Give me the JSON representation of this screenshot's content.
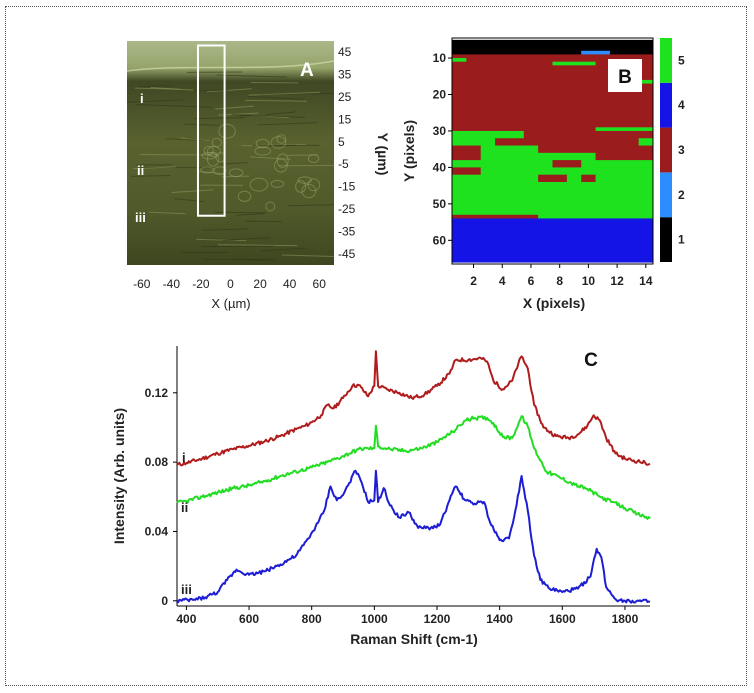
{
  "panel_a": {
    "letter": "A",
    "x_label": "X (µm)",
    "y_label": "Y (µm)",
    "x_ticks": [
      -60,
      -40,
      -20,
      0,
      20,
      40,
      60
    ],
    "y_ticks": [
      45,
      35,
      25,
      15,
      5,
      -5,
      -15,
      -25,
      -35,
      -45
    ],
    "region_labels": [
      "i",
      "ii",
      "iii"
    ],
    "xlim": [
      -70,
      70
    ],
    "ylim": [
      -50,
      50
    ],
    "box": {
      "x0": -22,
      "x1": -4,
      "y0": -28,
      "y1": 48
    }
  },
  "chart_data": [
    {
      "type": "heatmap",
      "panel": "B",
      "letter": "B",
      "xlabel": "X (pixels)",
      "ylabel": "Y (pixels)",
      "x_ticks": [
        2,
        4,
        6,
        8,
        10,
        12,
        14
      ],
      "y_ticks": [
        10,
        20,
        30,
        40,
        50,
        60
      ],
      "xlim": [
        0.5,
        14.5
      ],
      "ylim": [
        4.5,
        66.5
      ],
      "colorbar": {
        "labels": [
          "1",
          "2",
          "3",
          "4",
          "5"
        ],
        "classes": [
          1,
          2,
          3,
          4,
          5
        ],
        "colors": [
          "#000000",
          "#2d8cff",
          "#9b1c1c",
          "#1414e6",
          "#1de21d"
        ]
      },
      "rows": [
        {
          "y0": 5,
          "y1": 8,
          "runs": [
            [
              1,
              14,
              1
            ]
          ]
        },
        {
          "y0": 8,
          "y1": 9,
          "runs": [
            [
              1,
              9,
              1
            ],
            [
              10,
              11,
              2
            ],
            [
              12,
              14,
              1
            ]
          ]
        },
        {
          "y0": 9,
          "y1": 10,
          "runs": [
            [
              1,
              7,
              3
            ],
            [
              8,
              14,
              3
            ]
          ]
        },
        {
          "y0": 10,
          "y1": 11,
          "runs": [
            [
              1,
              1,
              5
            ],
            [
              2,
              14,
              3
            ]
          ]
        },
        {
          "y0": 11,
          "y1": 12,
          "runs": [
            [
              1,
              7,
              3
            ],
            [
              8,
              10,
              5
            ],
            [
              11,
              14,
              3
            ]
          ]
        },
        {
          "y0": 12,
          "y1": 16,
          "runs": [
            [
              1,
              14,
              3
            ]
          ]
        },
        {
          "y0": 16,
          "y1": 17,
          "runs": [
            [
              1,
              13,
              3
            ],
            [
              14,
              14,
              5
            ]
          ]
        },
        {
          "y0": 17,
          "y1": 29,
          "runs": [
            [
              1,
              14,
              3
            ]
          ]
        },
        {
          "y0": 29,
          "y1": 30,
          "runs": [
            [
              1,
              10,
              3
            ],
            [
              11,
              14,
              5
            ]
          ]
        },
        {
          "y0": 30,
          "y1": 32,
          "runs": [
            [
              1,
              5,
              5
            ],
            [
              6,
              14,
              3
            ]
          ]
        },
        {
          "y0": 32,
          "y1": 34,
          "runs": [
            [
              1,
              3,
              5
            ],
            [
              4,
              13,
              3
            ],
            [
              14,
              14,
              5
            ]
          ]
        },
        {
          "y0": 34,
          "y1": 36,
          "runs": [
            [
              1,
              2,
              3
            ],
            [
              3,
              6,
              5
            ],
            [
              7,
              14,
              3
            ]
          ]
        },
        {
          "y0": 36,
          "y1": 38,
          "runs": [
            [
              1,
              2,
              3
            ],
            [
              3,
              10,
              5
            ],
            [
              11,
              14,
              3
            ]
          ]
        },
        {
          "y0": 38,
          "y1": 40,
          "runs": [
            [
              1,
              7,
              5
            ],
            [
              8,
              9,
              3
            ],
            [
              10,
              14,
              5
            ]
          ]
        },
        {
          "y0": 40,
          "y1": 42,
          "runs": [
            [
              1,
              2,
              3
            ],
            [
              3,
              14,
              5
            ]
          ]
        },
        {
          "y0": 42,
          "y1": 44,
          "runs": [
            [
              1,
              6,
              5
            ],
            [
              7,
              8,
              3
            ],
            [
              9,
              9,
              5
            ],
            [
              10,
              10,
              3
            ],
            [
              11,
              14,
              5
            ]
          ]
        },
        {
          "y0": 44,
          "y1": 53,
          "runs": [
            [
              1,
              14,
              5
            ]
          ]
        },
        {
          "y0": 53,
          "y1": 54,
          "runs": [
            [
              1,
              6,
              3
            ],
            [
              7,
              14,
              5
            ]
          ]
        },
        {
          "y0": 54,
          "y1": 66,
          "runs": [
            [
              1,
              14,
              4
            ]
          ]
        }
      ]
    },
    {
      "type": "line",
      "panel": "C",
      "letter": "C",
      "xlabel": "Raman Shift (cm-1)",
      "ylabel": "Intensity (Arb. units)",
      "xlim": [
        370,
        1880
      ],
      "ylim": [
        -0.003,
        0.147
      ],
      "x_ticks": [
        400,
        600,
        800,
        1000,
        1200,
        1400,
        1600,
        1800
      ],
      "y_ticks": [
        0,
        0.04,
        0.08,
        0.12
      ],
      "series": [
        {
          "name": "i",
          "color": "#b01c1c",
          "points": [
            [
              370,
              0.0785
            ],
            [
              400,
              0.0795
            ],
            [
              450,
              0.082
            ],
            [
              500,
              0.085
            ],
            [
              550,
              0.0875
            ],
            [
              600,
              0.0895
            ],
            [
              650,
              0.092
            ],
            [
              700,
              0.095
            ],
            [
              750,
              0.099
            ],
            [
              780,
              0.101
            ],
            [
              800,
              0.103
            ],
            [
              830,
              0.107
            ],
            [
              850,
              0.113
            ],
            [
              870,
              0.111
            ],
            [
              900,
              0.117
            ],
            [
              930,
              0.124
            ],
            [
              950,
              0.1245
            ],
            [
              980,
              0.118
            ],
            [
              1000,
              0.124
            ],
            [
              1005,
              0.144
            ],
            [
              1012,
              0.124
            ],
            [
              1040,
              0.122
            ],
            [
              1080,
              0.12
            ],
            [
              1120,
              0.117
            ],
            [
              1160,
              0.119
            ],
            [
              1200,
              0.124
            ],
            [
              1240,
              0.131
            ],
            [
              1260,
              0.139
            ],
            [
              1300,
              0.139
            ],
            [
              1340,
              0.14
            ],
            [
              1360,
              0.138
            ],
            [
              1380,
              0.127
            ],
            [
              1410,
              0.122
            ],
            [
              1440,
              0.127
            ],
            [
              1460,
              0.137
            ],
            [
              1470,
              0.141
            ],
            [
              1490,
              0.134
            ],
            [
              1510,
              0.113
            ],
            [
              1540,
              0.1
            ],
            [
              1580,
              0.095
            ],
            [
              1620,
              0.094
            ],
            [
              1650,
              0.096
            ],
            [
              1680,
              0.101
            ],
            [
              1700,
              0.107
            ],
            [
              1720,
              0.104
            ],
            [
              1740,
              0.094
            ],
            [
              1770,
              0.085
            ],
            [
              1800,
              0.082
            ],
            [
              1840,
              0.0805
            ],
            [
              1880,
              0.079
            ]
          ]
        },
        {
          "name": "ii",
          "color": "#22dd22",
          "points": [
            [
              370,
              0.0565
            ],
            [
              400,
              0.0575
            ],
            [
              450,
              0.06
            ],
            [
              500,
              0.0625
            ],
            [
              550,
              0.065
            ],
            [
              600,
              0.0665
            ],
            [
              650,
              0.069
            ],
            [
              700,
              0.072
            ],
            [
              750,
              0.0745
            ],
            [
              800,
              0.077
            ],
            [
              850,
              0.08
            ],
            [
              900,
              0.0835
            ],
            [
              950,
              0.0875
            ],
            [
              980,
              0.088
            ],
            [
              1000,
              0.088
            ],
            [
              1005,
              0.101
            ],
            [
              1012,
              0.089
            ],
            [
              1050,
              0.0875
            ],
            [
              1100,
              0.0865
            ],
            [
              1150,
              0.088
            ],
            [
              1200,
              0.0915
            ],
            [
              1250,
              0.0975
            ],
            [
              1290,
              0.104
            ],
            [
              1320,
              0.1055
            ],
            [
              1360,
              0.1055
            ],
            [
              1380,
              0.1025
            ],
            [
              1410,
              0.0945
            ],
            [
              1440,
              0.094
            ],
            [
              1460,
              0.102
            ],
            [
              1470,
              0.1065
            ],
            [
              1490,
              0.1005
            ],
            [
              1510,
              0.088
            ],
            [
              1550,
              0.0745
            ],
            [
              1600,
              0.0705
            ],
            [
              1640,
              0.067
            ],
            [
              1680,
              0.0645
            ],
            [
              1720,
              0.06
            ],
            [
              1760,
              0.057
            ],
            [
              1800,
              0.0535
            ],
            [
              1840,
              0.05
            ],
            [
              1880,
              0.0475
            ]
          ]
        },
        {
          "name": "iii",
          "color": "#1d1dd4",
          "points": [
            [
              370,
              0
            ],
            [
              420,
              0.0005
            ],
            [
              460,
              0.002
            ],
            [
              500,
              0.005
            ],
            [
              530,
              0.012
            ],
            [
              560,
              0.018
            ],
            [
              600,
              0.015
            ],
            [
              650,
              0.017
            ],
            [
              700,
              0.021
            ],
            [
              750,
              0.026
            ],
            [
              790,
              0.036
            ],
            [
              820,
              0.045
            ],
            [
              840,
              0.052
            ],
            [
              860,
              0.066
            ],
            [
              880,
              0.058
            ],
            [
              900,
              0.061
            ],
            [
              920,
              0.068
            ],
            [
              940,
              0.075
            ],
            [
              960,
              0.068
            ],
            [
              980,
              0.057
            ],
            [
              1000,
              0.058
            ],
            [
              1005,
              0.075
            ],
            [
              1012,
              0.057
            ],
            [
              1030,
              0.065
            ],
            [
              1050,
              0.055
            ],
            [
              1080,
              0.048
            ],
            [
              1110,
              0.051
            ],
            [
              1140,
              0.042
            ],
            [
              1180,
              0.042
            ],
            [
              1210,
              0.044
            ],
            [
              1240,
              0.058
            ],
            [
              1260,
              0.066
            ],
            [
              1290,
              0.058
            ],
            [
              1320,
              0.056
            ],
            [
              1350,
              0.057
            ],
            [
              1370,
              0.045
            ],
            [
              1400,
              0.035
            ],
            [
              1430,
              0.036
            ],
            [
              1450,
              0.052
            ],
            [
              1470,
              0.072
            ],
            [
              1490,
              0.052
            ],
            [
              1510,
              0.026
            ],
            [
              1530,
              0.012
            ],
            [
              1560,
              0.007
            ],
            [
              1600,
              0.005
            ],
            [
              1650,
              0.007
            ],
            [
              1690,
              0.014
            ],
            [
              1710,
              0.03
            ],
            [
              1725,
              0.025
            ],
            [
              1740,
              0.008
            ],
            [
              1770,
              0.001
            ],
            [
              1800,
              0
            ],
            [
              1880,
              -0.0005
            ]
          ]
        }
      ]
    }
  ]
}
